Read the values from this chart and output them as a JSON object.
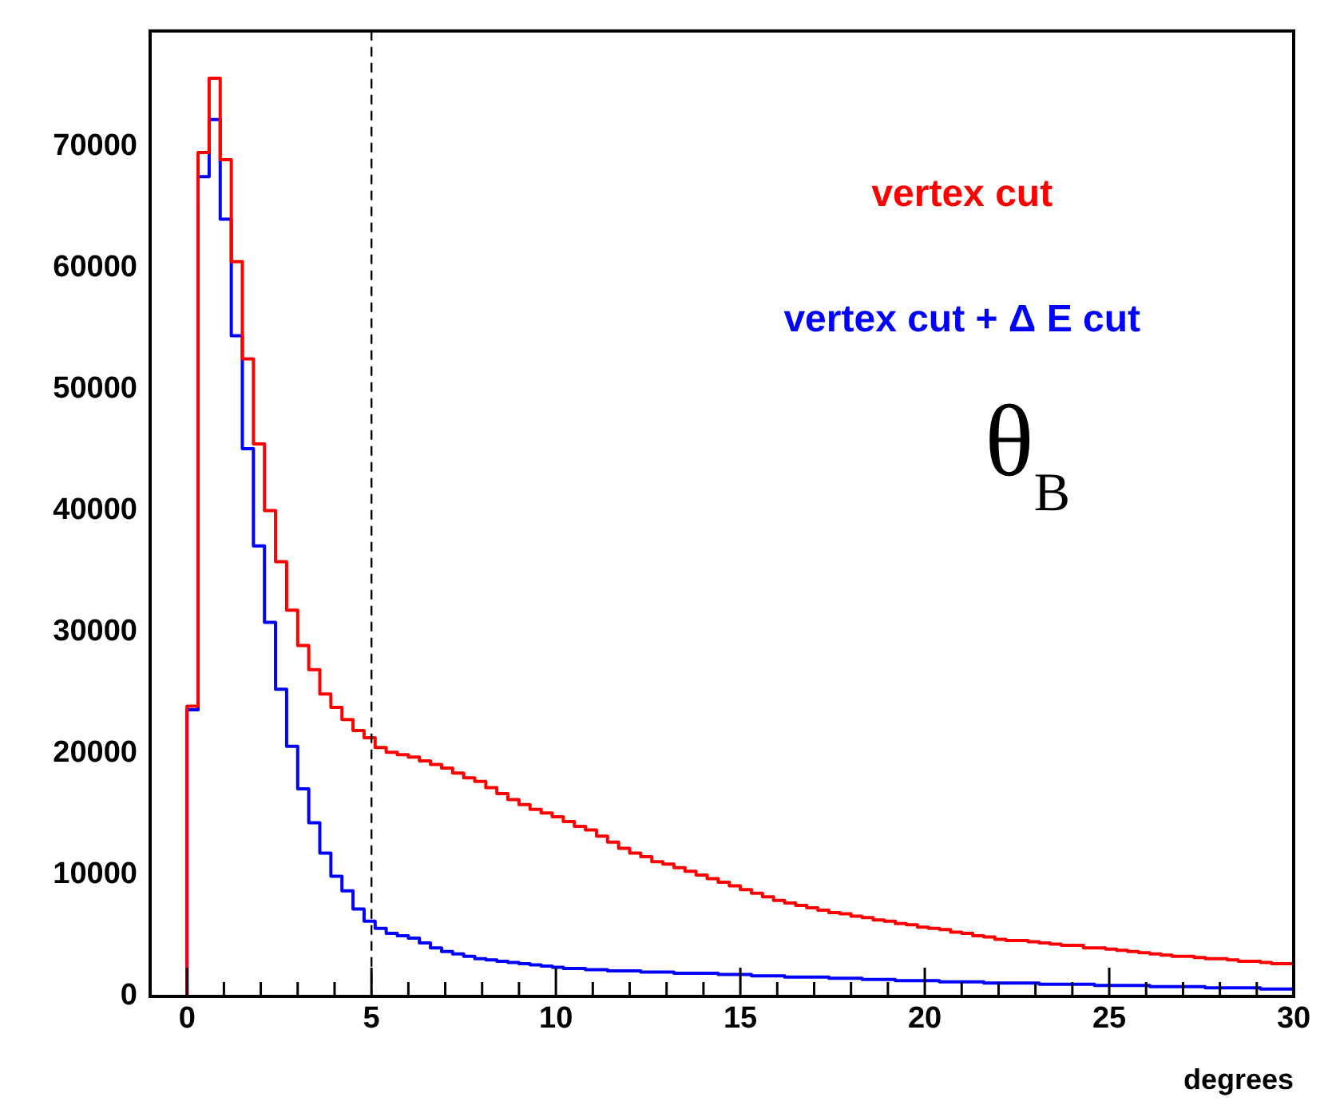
{
  "chart_data": {
    "type": "histogram",
    "xlabel": "degrees",
    "annotations": [
      "θ$_{B}$"
    ],
    "bins": [
      0,
      0.3,
      0.6,
      0.9,
      1.2,
      1.5,
      1.8,
      2.1,
      2.4,
      2.7,
      3,
      3.3,
      3.6,
      3.9,
      4.2,
      4.5,
      4.8,
      5.1,
      5.4,
      5.7,
      6,
      6.3,
      6.6,
      6.9,
      7.2,
      7.5,
      7.8,
      8.1,
      8.4,
      8.7,
      9,
      9.3,
      9.6,
      9.9,
      10.2,
      10.5,
      10.8,
      11.1,
      11.4,
      11.7,
      12,
      12.3,
      12.6,
      12.9,
      13.2,
      13.5,
      13.8,
      14.1,
      14.4,
      14.7,
      15,
      15.3,
      15.6,
      15.9,
      16.2,
      16.5,
      16.8,
      17.1,
      17.4,
      17.7,
      18,
      18.3,
      18.6,
      18.9,
      19.2,
      19.5,
      19.8,
      20.1,
      20.4,
      20.7,
      21,
      21.3,
      21.6,
      21.9,
      22.2,
      22.5,
      22.8,
      23.1,
      23.4,
      23.7,
      24,
      24.3,
      24.6,
      24.9,
      25.2,
      25.5,
      25.8,
      26.1,
      26.4,
      26.7,
      27,
      27.3,
      27.6,
      27.9,
      28.2,
      28.5,
      28.8,
      29.1,
      29.4,
      29.7,
      30
    ],
    "series": [
      {
        "name": "vertex cut",
        "color": "#ff0000",
        "values": [
          23900,
          69500,
          75600,
          68900,
          60500,
          52500,
          45500,
          40000,
          35800,
          31800,
          28900,
          26900,
          24900,
          23800,
          22800,
          21900,
          21300,
          20500,
          20100,
          19900,
          19700,
          19400,
          19100,
          18800,
          18400,
          18000,
          17700,
          17200,
          16700,
          16200,
          15800,
          15400,
          15100,
          14800,
          14400,
          14000,
          13700,
          13200,
          12700,
          12200,
          11800,
          11500,
          11100,
          10900,
          10600,
          10300,
          10000,
          9700,
          9400,
          9100,
          8800,
          8500,
          8200,
          7900,
          7700,
          7500,
          7300,
          7100,
          6900,
          6800,
          6600,
          6500,
          6300,
          6200,
          6000,
          5900,
          5700,
          5600,
          5500,
          5300,
          5200,
          5000,
          4900,
          4700,
          4600,
          4600,
          4500,
          4400,
          4300,
          4200,
          4200,
          4000,
          4000,
          3900,
          3800,
          3700,
          3600,
          3500,
          3400,
          3300,
          3300,
          3200,
          3100,
          3100,
          3000,
          2900,
          2900,
          2800,
          2700,
          2700
        ]
      },
      {
        "name": "vertex cut + Δ E cut",
        "color": "#0000ff",
        "values": [
          23600,
          67500,
          72200,
          64000,
          54400,
          45100,
          37100,
          30800,
          25300,
          20600,
          17100,
          14300,
          11800,
          9900,
          8700,
          7200,
          6200,
          5600,
          5200,
          5000,
          4800,
          4400,
          4000,
          3700,
          3500,
          3300,
          3100,
          3000,
          2900,
          2800,
          2700,
          2600,
          2500,
          2400,
          2300,
          2300,
          2200,
          2200,
          2100,
          2100,
          2100,
          2000,
          2000,
          2000,
          1900,
          1900,
          1900,
          1900,
          1800,
          1800,
          1800,
          1700,
          1700,
          1700,
          1600,
          1600,
          1600,
          1600,
          1500,
          1500,
          1500,
          1400,
          1400,
          1400,
          1300,
          1300,
          1300,
          1300,
          1200,
          1200,
          1200,
          1200,
          1100,
          1100,
          1100,
          1100,
          1100,
          1000,
          1000,
          1000,
          1000,
          1000,
          900,
          900,
          900,
          900,
          900,
          800,
          800,
          800,
          800,
          800,
          700,
          700,
          700,
          700,
          700,
          600,
          600,
          600
        ]
      }
    ],
    "xlim": [
      -1,
      30
    ],
    "xticks": [
      0,
      5,
      10,
      15,
      20,
      25,
      30
    ],
    "ylim": [
      0,
      79500
    ],
    "yticks": [
      0,
      10000,
      20000,
      30000,
      40000,
      50000,
      60000,
      70000
    ],
    "ref_lines": [
      {
        "axis": "x",
        "value": 5,
        "color": "#000000",
        "line_style": "dashed"
      }
    ],
    "grid": false,
    "line_style": "solid",
    "marker": "none"
  }
}
